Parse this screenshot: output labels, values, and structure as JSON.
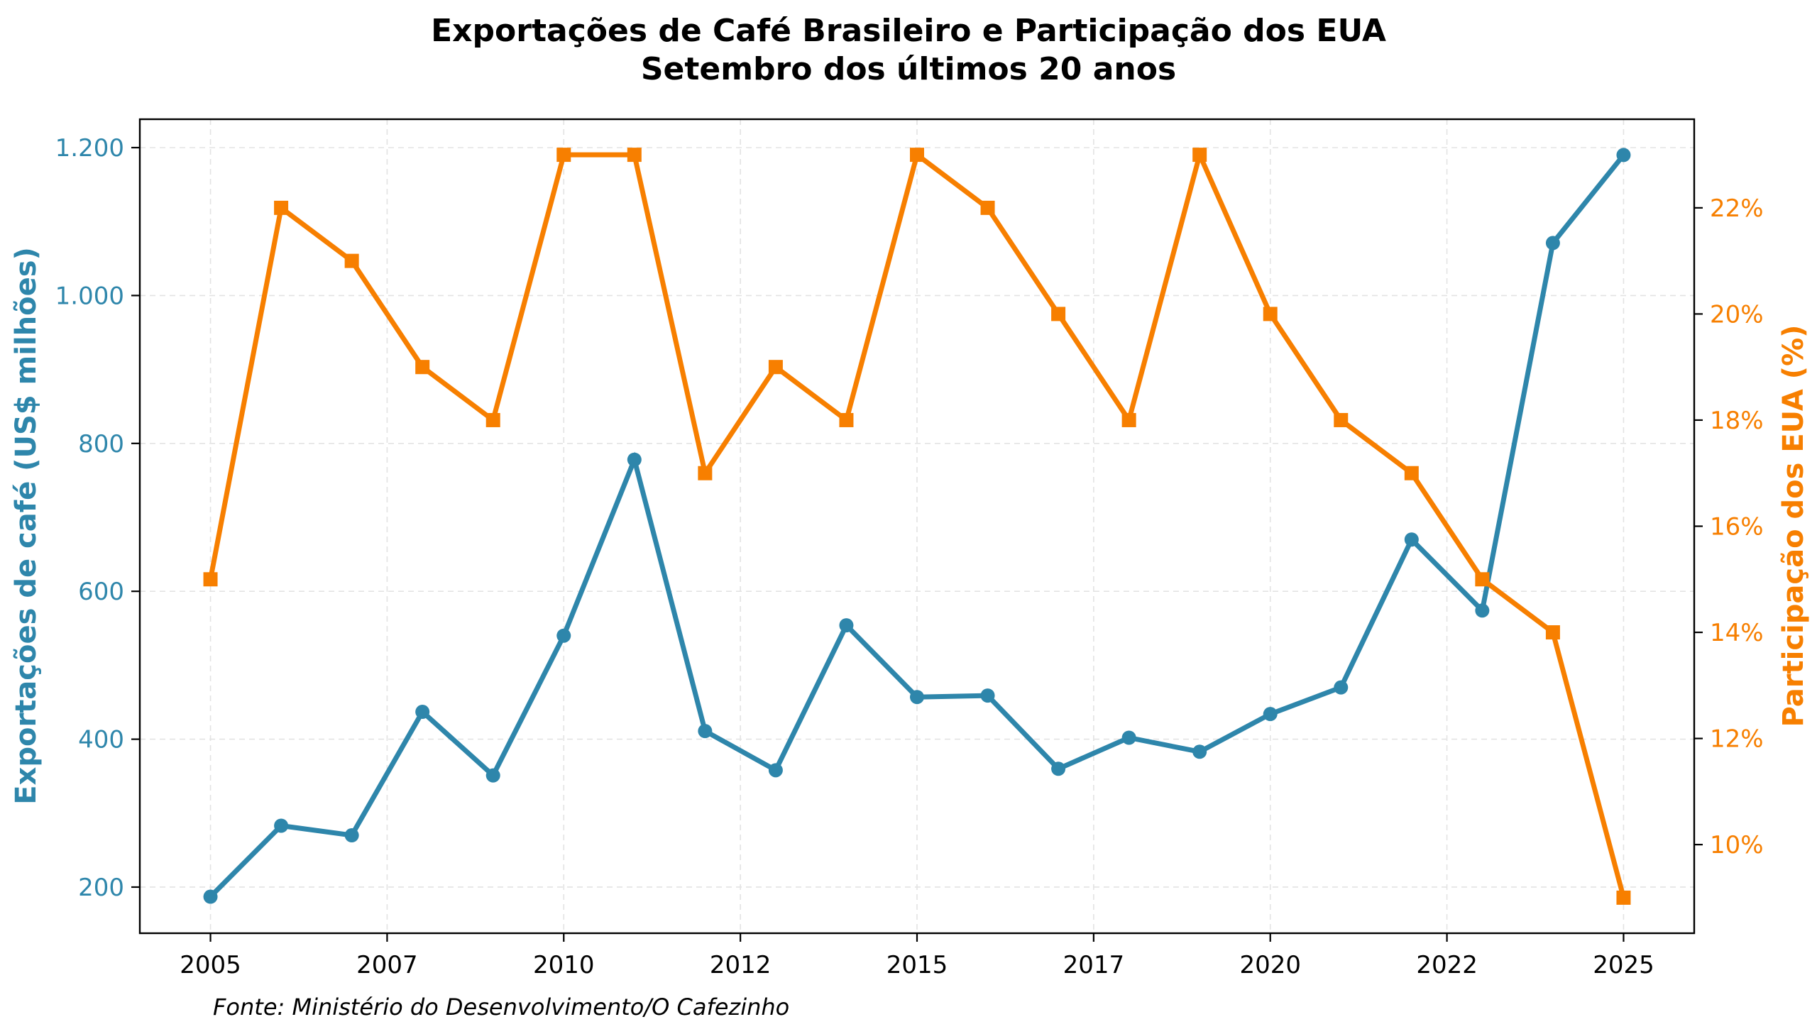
{
  "chart_data": {
    "type": "line",
    "title": "Exportações de Café Brasileiro e Participação dos EUA",
    "subtitle": "Setembro dos últimos 20 anos",
    "xlabel": "",
    "x": [
      2005,
      2006,
      2007,
      2008,
      2009,
      2010,
      2011,
      2012,
      2013,
      2014,
      2015,
      2016,
      2017,
      2018,
      2019,
      2020,
      2021,
      2022,
      2023,
      2024,
      2025
    ],
    "x_ticks": [
      {
        "pos": 2005,
        "label": "2005"
      },
      {
        "pos": 2007.5,
        "label": "2007"
      },
      {
        "pos": 2010,
        "label": "2010"
      },
      {
        "pos": 2012.5,
        "label": "2012"
      },
      {
        "pos": 2015,
        "label": "2015"
      },
      {
        "pos": 2017.5,
        "label": "2017"
      },
      {
        "pos": 2020,
        "label": "2020"
      },
      {
        "pos": 2022.5,
        "label": "2022"
      },
      {
        "pos": 2025,
        "label": "2025"
      }
    ],
    "xlim": [
      2004,
      2026
    ],
    "series": [
      {
        "name": "Exportações de café (US$ milhões)",
        "axis": "left",
        "color": "#2E86AB",
        "marker": "circle",
        "values": [
          187,
          283,
          270,
          437,
          351,
          540,
          778,
          411,
          358,
          554,
          457,
          459,
          360,
          402,
          383,
          434,
          470,
          670,
          574,
          1071,
          1190
        ]
      },
      {
        "name": "Participação dos EUA (%)",
        "axis": "right",
        "color": "#F77F00",
        "marker": "square",
        "values": [
          15,
          22,
          21,
          19,
          18,
          23,
          23,
          17,
          19,
          18,
          23,
          22,
          20,
          18,
          23,
          20,
          18,
          17,
          15,
          14,
          9
        ]
      }
    ],
    "y_left": {
      "label": "Exportações de café (US$ milhões)",
      "color": "#2E86AB",
      "ylim": [
        137.6,
        1238.4
      ],
      "ticks": [
        {
          "value": 200,
          "label": "200"
        },
        {
          "value": 400,
          "label": "400"
        },
        {
          "value": 600,
          "label": "600"
        },
        {
          "value": 800,
          "label": "800"
        },
        {
          "value": 1000,
          "label": "1.000"
        },
        {
          "value": 1200,
          "label": "1.200"
        }
      ]
    },
    "y_right": {
      "label": "Participação dos EUA (%)",
      "color": "#F77F00",
      "ylim": [
        8.33,
        23.67
      ],
      "ticks": [
        {
          "value": 10,
          "label": "10%"
        },
        {
          "value": 12,
          "label": "12%"
        },
        {
          "value": 14,
          "label": "14%"
        },
        {
          "value": 16,
          "label": "16%"
        },
        {
          "value": 18,
          "label": "18%"
        },
        {
          "value": 20,
          "label": "20%"
        },
        {
          "value": 22,
          "label": "22%"
        }
      ]
    },
    "grid": true,
    "legend": "none",
    "source_note": "Fonte: Ministério do Desenvolvimento/O Cafezinho"
  }
}
